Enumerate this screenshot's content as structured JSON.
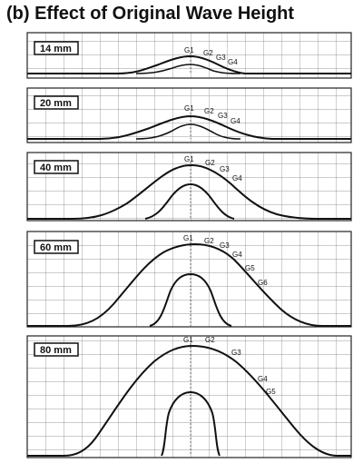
{
  "title": "(b) Effect of Original Wave Height",
  "panels": [
    {
      "label": "14 mm",
      "gauges": [
        "G1",
        "G2",
        "G3",
        "G4"
      ]
    },
    {
      "label": "20 mm",
      "gauges": [
        "G1",
        "G2",
        "G3",
        "G4"
      ]
    },
    {
      "label": "40 mm",
      "gauges": [
        "G1",
        "G2",
        "G3",
        "G4"
      ]
    },
    {
      "label": "60 mm",
      "gauges": [
        "G1",
        "G2",
        "G3",
        "G4",
        "G5",
        "G6"
      ]
    },
    {
      "label": "80 mm",
      "gauges": [
        "G1",
        "G2",
        "G3",
        "G4",
        "G5"
      ]
    }
  ]
}
